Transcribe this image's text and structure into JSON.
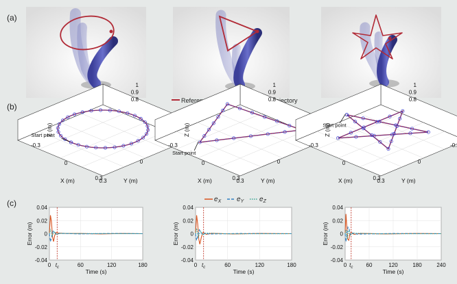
{
  "panels": {
    "a": "(a)",
    "b": "(b)",
    "c": "(c)"
  },
  "legend_b": {
    "reference": "Reference trajectory",
    "actual": "Actual trajectory"
  },
  "legend_c": {
    "ex": "e",
    "ex_sub": "X",
    "ey": "e",
    "ey_sub": "Y",
    "ez": "e",
    "ez_sub": "Z"
  },
  "axes3d": {
    "z_label": "Z (m)",
    "x_label": "X (m)",
    "y_label": "Y (m)",
    "z_ticks": [
      "1",
      "0.9",
      "0.8"
    ],
    "x_ticks": [
      "-0.3",
      "0",
      "0.3"
    ],
    "y_ticks": [
      "-0.3",
      "0",
      "0.3"
    ],
    "start_point": "Start point"
  },
  "chart_data": [
    {
      "type": "line",
      "title": "circle",
      "xlabel": "Time (s)",
      "ylabel": "Error (m)",
      "xlim": [
        0,
        180
      ],
      "ylim": [
        -0.04,
        0.04
      ],
      "x_ticks": [
        "0",
        "60",
        "120",
        "180"
      ],
      "y_ticks": [
        "0.04",
        "0.02",
        "0",
        "-0.02",
        "-0.04"
      ],
      "tc_label": "t",
      "tc_sub": "c",
      "tc": 15,
      "series": [
        {
          "name": "eX",
          "color": "#d9531e",
          "points": [
            [
              0,
              0
            ],
            [
              2,
              0.028
            ],
            [
              4,
              0.018
            ],
            [
              6,
              -0.005
            ],
            [
              8,
              -0.012
            ],
            [
              10,
              -0.003
            ],
            [
              13,
              0.002
            ],
            [
              17,
              0.001
            ],
            [
              30,
              0.0005
            ],
            [
              60,
              0.0003
            ],
            [
              100,
              -0.0004
            ],
            [
              140,
              0.0003
            ],
            [
              180,
              0
            ]
          ]
        },
        {
          "name": "eY",
          "color": "#2f7fc1",
          "points": [
            [
              0,
              0
            ],
            [
              2,
              -0.012
            ],
            [
              4,
              -0.006
            ],
            [
              7,
              0.004
            ],
            [
              10,
              0.002
            ],
            [
              14,
              -0.001
            ],
            [
              20,
              0.0005
            ],
            [
              60,
              -0.0003
            ],
            [
              120,
              0.0004
            ],
            [
              180,
              0
            ]
          ]
        },
        {
          "name": "eZ",
          "color": "#3fa896",
          "points": [
            [
              0,
              0
            ],
            [
              2,
              0.007
            ],
            [
              5,
              -0.004
            ],
            [
              9,
              0.003
            ],
            [
              13,
              -0.001
            ],
            [
              20,
              0.0005
            ],
            [
              80,
              0.0002
            ],
            [
              180,
              0
            ]
          ]
        }
      ]
    },
    {
      "type": "line",
      "title": "triangle",
      "xlabel": "Time (s)",
      "ylabel": "Error (m)",
      "xlim": [
        0,
        180
      ],
      "ylim": [
        -0.04,
        0.04
      ],
      "x_ticks": [
        "0",
        "60",
        "120",
        "180"
      ],
      "y_ticks": [
        "0.04",
        "0.02",
        "0",
        "-0.02",
        "-0.04"
      ],
      "tc_label": "t",
      "tc_sub": "c",
      "tc": 15,
      "series": [
        {
          "name": "eX",
          "color": "#d9531e",
          "points": [
            [
              0,
              0
            ],
            [
              2,
              0.028
            ],
            [
              4,
              0.015
            ],
            [
              6,
              -0.008
            ],
            [
              8,
              -0.016
            ],
            [
              11,
              -0.005
            ],
            [
              14,
              0.002
            ],
            [
              20,
              -0.001
            ],
            [
              30,
              0.0006
            ],
            [
              70,
              -0.0004
            ],
            [
              120,
              0.0003
            ],
            [
              180,
              0
            ]
          ]
        },
        {
          "name": "eY",
          "color": "#2f7fc1",
          "points": [
            [
              0,
              0
            ],
            [
              2,
              -0.01
            ],
            [
              4,
              -0.004
            ],
            [
              7,
              0.006
            ],
            [
              10,
              0.003
            ],
            [
              13,
              -0.002
            ],
            [
              18,
              0.001
            ],
            [
              25,
              -0.0005
            ],
            [
              80,
              0.0003
            ],
            [
              180,
              0
            ]
          ]
        },
        {
          "name": "eZ",
          "color": "#3fa896",
          "points": [
            [
              0,
              0
            ],
            [
              2,
              0.008
            ],
            [
              5,
              -0.006
            ],
            [
              9,
              0.004
            ],
            [
              14,
              -0.002
            ],
            [
              20,
              0.001
            ],
            [
              60,
              -0.0002
            ],
            [
              180,
              0
            ]
          ]
        }
      ]
    },
    {
      "type": "line",
      "title": "star",
      "xlabel": "Time (s)",
      "ylabel": "Error (m)",
      "xlim": [
        0,
        240
      ],
      "ylim": [
        -0.04,
        0.04
      ],
      "x_ticks": [
        "0",
        "60",
        "120",
        "180",
        "240"
      ],
      "y_ticks": [
        "0.04",
        "0.02",
        "0",
        "-0.02",
        "-0.04"
      ],
      "tc_label": "t",
      "tc_sub": "c",
      "tc": 15,
      "series": [
        {
          "name": "eX",
          "color": "#d9531e",
          "points": [
            [
              0,
              0
            ],
            [
              2,
              0.03
            ],
            [
              4,
              0.012
            ],
            [
              6,
              -0.008
            ],
            [
              9,
              -0.01
            ],
            [
              12,
              0.001
            ],
            [
              16,
              0.002
            ],
            [
              22,
              -0.001
            ],
            [
              40,
              0.0005
            ],
            [
              100,
              -0.0003
            ],
            [
              180,
              0.0003
            ],
            [
              240,
              0
            ]
          ]
        },
        {
          "name": "eY",
          "color": "#2f7fc1",
          "points": [
            [
              0,
              0
            ],
            [
              2,
              -0.012
            ],
            [
              4,
              -0.003
            ],
            [
              7,
              0.01
            ],
            [
              10,
              0.007
            ],
            [
              13,
              -0.002
            ],
            [
              18,
              0.001
            ],
            [
              30,
              -0.0006
            ],
            [
              120,
              0.0003
            ],
            [
              240,
              0
            ]
          ]
        },
        {
          "name": "eZ",
          "color": "#3fa896",
          "points": [
            [
              0,
              0
            ],
            [
              2,
              0.006
            ],
            [
              5,
              -0.008
            ],
            [
              9,
              0.005
            ],
            [
              13,
              -0.002
            ],
            [
              20,
              0.001
            ],
            [
              80,
              -0.0002
            ],
            [
              240,
              0
            ]
          ]
        }
      ]
    }
  ]
}
